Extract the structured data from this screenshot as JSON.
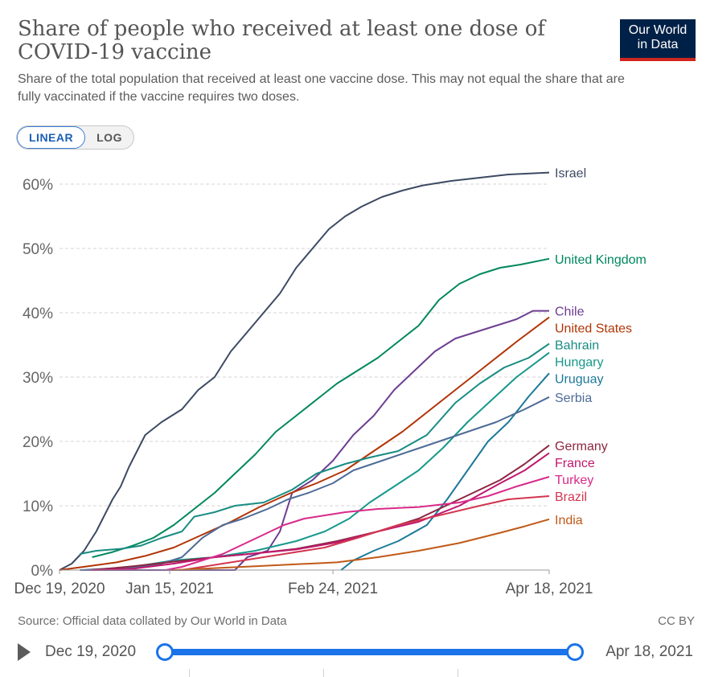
{
  "header": {
    "title": "Share of people who received at least one dose of COVID-19 vaccine",
    "subtitle": "Share of the total population that received at least one vaccine dose. This may not equal the share that are fully vaccinated if the vaccine requires two doses.",
    "logo_line1": "Our World",
    "logo_line2": "in Data"
  },
  "scale_toggle": {
    "linear_label": "LINEAR",
    "log_label": "LOG",
    "selected": "LINEAR"
  },
  "footer": {
    "source": "Source: Official data collated by Our World in Data",
    "license": "CC BY"
  },
  "timeline": {
    "start_label": "Dec 19, 2020",
    "end_label": "Apr 18, 2021"
  },
  "colors": {
    "accent": "#1a73e8",
    "logo_bg": "#002147",
    "logo_bar": "#ce261e"
  },
  "chart_data": {
    "type": "line",
    "title": "Share of people who received at least one dose of COVID-19 vaccine",
    "x_type": "date",
    "xlim": [
      "2020-12-19",
      "2021-04-18"
    ],
    "x_ticks": [
      {
        "date": "2020-12-19",
        "label": "Dec 19, 2020"
      },
      {
        "date": "2021-01-15",
        "label": "Jan 15, 2021"
      },
      {
        "date": "2021-02-24",
        "label": "Feb 24, 2021"
      },
      {
        "date": "2021-04-18",
        "label": "Apr 18, 2021"
      }
    ],
    "ylim": [
      0,
      62
    ],
    "y_ticks": [
      0,
      10,
      20,
      30,
      40,
      50,
      60
    ],
    "y_tick_labels": [
      "0%",
      "10%",
      "20%",
      "30%",
      "40%",
      "50%",
      "60%"
    ],
    "grid": true,
    "legend": "right, labels at line ends",
    "series": [
      {
        "name": "Israel",
        "color": "#3c4a63",
        "points": [
          [
            "2020-12-19",
            0
          ],
          [
            "2020-12-22",
            1
          ],
          [
            "2020-12-25",
            3
          ],
          [
            "2020-12-28",
            6
          ],
          [
            "2021-01-01",
            11
          ],
          [
            "2021-01-03",
            13
          ],
          [
            "2021-01-05",
            16
          ],
          [
            "2021-01-09",
            21
          ],
          [
            "2021-01-13",
            23
          ],
          [
            "2021-01-18",
            25
          ],
          [
            "2021-01-22",
            28
          ],
          [
            "2021-01-26",
            30
          ],
          [
            "2021-01-30",
            34
          ],
          [
            "2021-02-03",
            37
          ],
          [
            "2021-02-07",
            40
          ],
          [
            "2021-02-11",
            43
          ],
          [
            "2021-02-15",
            47
          ],
          [
            "2021-02-19",
            50
          ],
          [
            "2021-02-23",
            53
          ],
          [
            "2021-02-27",
            55
          ],
          [
            "2021-03-03",
            56.5
          ],
          [
            "2021-03-08",
            58
          ],
          [
            "2021-03-13",
            59
          ],
          [
            "2021-03-18",
            59.8
          ],
          [
            "2021-03-25",
            60.5
          ],
          [
            "2021-04-01",
            61
          ],
          [
            "2021-04-08",
            61.5
          ],
          [
            "2021-04-18",
            61.8
          ]
        ]
      },
      {
        "name": "United Kingdom",
        "color": "#00875e",
        "points": [
          [
            "2020-12-27",
            2
          ],
          [
            "2021-01-01",
            2.8
          ],
          [
            "2021-01-06",
            3.8
          ],
          [
            "2021-01-11",
            5
          ],
          [
            "2021-01-16",
            7
          ],
          [
            "2021-01-21",
            9.5
          ],
          [
            "2021-01-26",
            12
          ],
          [
            "2021-01-31",
            15
          ],
          [
            "2021-02-05",
            18
          ],
          [
            "2021-02-10",
            21.5
          ],
          [
            "2021-02-15",
            24
          ],
          [
            "2021-02-20",
            26.5
          ],
          [
            "2021-02-25",
            29
          ],
          [
            "2021-03-02",
            31
          ],
          [
            "2021-03-07",
            33
          ],
          [
            "2021-03-12",
            35.5
          ],
          [
            "2021-03-17",
            38
          ],
          [
            "2021-03-22",
            42
          ],
          [
            "2021-03-27",
            44.5
          ],
          [
            "2021-04-01",
            46
          ],
          [
            "2021-04-06",
            47
          ],
          [
            "2021-04-11",
            47.5
          ],
          [
            "2021-04-18",
            48.4
          ]
        ]
      },
      {
        "name": "Chile",
        "color": "#6d3e91",
        "points": [
          [
            "2020-12-24",
            0
          ],
          [
            "2021-01-31",
            0
          ],
          [
            "2021-02-03",
            2
          ],
          [
            "2021-02-08",
            3
          ],
          [
            "2021-02-11",
            6
          ],
          [
            "2021-02-14",
            12
          ],
          [
            "2021-02-19",
            14
          ],
          [
            "2021-02-24",
            17
          ],
          [
            "2021-03-01",
            21
          ],
          [
            "2021-03-06",
            24
          ],
          [
            "2021-03-11",
            28
          ],
          [
            "2021-03-16",
            31
          ],
          [
            "2021-03-21",
            34
          ],
          [
            "2021-03-26",
            36
          ],
          [
            "2021-03-31",
            37
          ],
          [
            "2021-04-05",
            38
          ],
          [
            "2021-04-10",
            39
          ],
          [
            "2021-04-14",
            40.3
          ],
          [
            "2021-04-18",
            40.3
          ]
        ]
      },
      {
        "name": "United States",
        "color": "#b13507",
        "points": [
          [
            "2020-12-19",
            0
          ],
          [
            "2020-12-26",
            0.6
          ],
          [
            "2021-01-02",
            1.2
          ],
          [
            "2021-01-09",
            2.2
          ],
          [
            "2021-01-16",
            3.5
          ],
          [
            "2021-01-23",
            5.5
          ],
          [
            "2021-01-30",
            7.5
          ],
          [
            "2021-02-06",
            9.8
          ],
          [
            "2021-02-13",
            11.8
          ],
          [
            "2021-02-20",
            13.5
          ],
          [
            "2021-02-27",
            15.5
          ],
          [
            "2021-03-06",
            18.5
          ],
          [
            "2021-03-13",
            21.5
          ],
          [
            "2021-03-20",
            25
          ],
          [
            "2021-03-27",
            28.5
          ],
          [
            "2021-04-03",
            32
          ],
          [
            "2021-04-10",
            35.5
          ],
          [
            "2021-04-18",
            39.3
          ]
        ]
      },
      {
        "name": "Bahrain",
        "color": "#188c82",
        "points": [
          [
            "2020-12-24",
            2.5
          ],
          [
            "2020-12-28",
            3
          ],
          [
            "2021-01-03",
            3.3
          ],
          [
            "2021-01-08",
            3.8
          ],
          [
            "2021-01-13",
            5
          ],
          [
            "2021-01-18",
            6
          ],
          [
            "2021-01-21",
            8.3
          ],
          [
            "2021-01-26",
            9
          ],
          [
            "2021-01-31",
            10
          ],
          [
            "2021-02-07",
            10.5
          ],
          [
            "2021-02-14",
            12.5
          ],
          [
            "2021-02-20",
            15
          ],
          [
            "2021-02-27",
            16.5
          ],
          [
            "2021-03-05",
            17.5
          ],
          [
            "2021-03-12",
            18.5
          ],
          [
            "2021-03-19",
            21
          ],
          [
            "2021-03-26",
            26
          ],
          [
            "2021-04-01",
            29
          ],
          [
            "2021-04-07",
            31.5
          ],
          [
            "2021-04-13",
            33
          ],
          [
            "2021-04-18",
            35.2
          ]
        ]
      },
      {
        "name": "Hungary",
        "color": "#17988c",
        "points": [
          [
            "2020-12-27",
            0
          ],
          [
            "2021-01-06",
            0.5
          ],
          [
            "2021-01-16",
            1.5
          ],
          [
            "2021-01-26",
            2
          ],
          [
            "2021-02-05",
            3
          ],
          [
            "2021-02-15",
            4.5
          ],
          [
            "2021-02-22",
            6
          ],
          [
            "2021-02-28",
            8
          ],
          [
            "2021-03-05",
            10.5
          ],
          [
            "2021-03-11",
            13
          ],
          [
            "2021-03-17",
            15.5
          ],
          [
            "2021-03-23",
            19
          ],
          [
            "2021-03-29",
            23
          ],
          [
            "2021-04-04",
            26.5
          ],
          [
            "2021-04-10",
            30
          ],
          [
            "2021-04-18",
            33.8
          ]
        ]
      },
      {
        "name": "Uruguay",
        "color": "#1d7999",
        "points": [
          [
            "2021-02-26",
            0
          ],
          [
            "2021-03-01",
            1.5
          ],
          [
            "2021-03-06",
            3
          ],
          [
            "2021-03-12",
            4.5
          ],
          [
            "2021-03-19",
            7
          ],
          [
            "2021-03-24",
            11
          ],
          [
            "2021-03-29",
            15.5
          ],
          [
            "2021-04-03",
            20
          ],
          [
            "2021-04-08",
            23
          ],
          [
            "2021-04-13",
            27
          ],
          [
            "2021-04-18",
            30.6
          ]
        ]
      },
      {
        "name": "Serbia",
        "color": "#4e6b96",
        "points": [
          [
            "2020-12-24",
            0
          ],
          [
            "2021-01-08",
            0.5
          ],
          [
            "2021-01-13",
            1
          ],
          [
            "2021-01-18",
            2
          ],
          [
            "2021-01-23",
            5
          ],
          [
            "2021-01-28",
            7
          ],
          [
            "2021-02-02",
            8
          ],
          [
            "2021-02-08",
            9.5
          ],
          [
            "2021-02-13",
            11
          ],
          [
            "2021-02-18",
            12
          ],
          [
            "2021-02-24",
            13.5
          ],
          [
            "2021-03-01",
            15.5
          ],
          [
            "2021-03-08",
            17
          ],
          [
            "2021-03-15",
            18.5
          ],
          [
            "2021-03-22",
            20
          ],
          [
            "2021-03-29",
            21.5
          ],
          [
            "2021-04-05",
            23
          ],
          [
            "2021-04-12",
            25
          ],
          [
            "2021-04-18",
            26.9
          ]
        ]
      },
      {
        "name": "Germany",
        "color": "#8c2742",
        "points": [
          [
            "2020-12-27",
            0
          ],
          [
            "2021-01-06",
            0.6
          ],
          [
            "2021-01-16",
            1.3
          ],
          [
            "2021-01-26",
            2
          ],
          [
            "2021-02-05",
            2.6
          ],
          [
            "2021-02-15",
            3.3
          ],
          [
            "2021-02-25",
            4.5
          ],
          [
            "2021-03-07",
            6
          ],
          [
            "2021-03-17",
            8
          ],
          [
            "2021-03-27",
            11
          ],
          [
            "2021-04-06",
            14
          ],
          [
            "2021-04-12",
            16.5
          ],
          [
            "2021-04-18",
            19.4
          ]
        ]
      },
      {
        "name": "France",
        "color": "#c0186e",
        "points": [
          [
            "2020-12-27",
            0
          ],
          [
            "2021-01-06",
            0.2
          ],
          [
            "2021-01-16",
            1
          ],
          [
            "2021-01-26",
            2
          ],
          [
            "2021-02-05",
            2.6
          ],
          [
            "2021-02-15",
            3.2
          ],
          [
            "2021-02-25",
            4.3
          ],
          [
            "2021-03-07",
            6
          ],
          [
            "2021-03-17",
            7.5
          ],
          [
            "2021-03-27",
            10
          ],
          [
            "2021-04-06",
            13.5
          ],
          [
            "2021-04-12",
            15.5
          ],
          [
            "2021-04-18",
            18.2
          ]
        ]
      },
      {
        "name": "Turkey",
        "color": "#d82a8a",
        "points": [
          [
            "2021-01-14",
            0
          ],
          [
            "2021-01-18",
            0.5
          ],
          [
            "2021-01-23",
            1.5
          ],
          [
            "2021-01-28",
            2.5
          ],
          [
            "2021-02-02",
            4
          ],
          [
            "2021-02-07",
            5.5
          ],
          [
            "2021-02-12",
            7
          ],
          [
            "2021-02-17",
            8
          ],
          [
            "2021-02-22",
            8.5
          ],
          [
            "2021-02-27",
            9
          ],
          [
            "2021-03-07",
            9.5
          ],
          [
            "2021-03-17",
            9.8
          ],
          [
            "2021-03-27",
            10.5
          ],
          [
            "2021-04-03",
            11.5
          ],
          [
            "2021-04-10",
            13
          ],
          [
            "2021-04-18",
            14.5
          ]
        ]
      },
      {
        "name": "Brazil",
        "color": "#d23550",
        "points": [
          [
            "2021-01-18",
            0
          ],
          [
            "2021-01-23",
            0.5
          ],
          [
            "2021-02-02",
            1.5
          ],
          [
            "2021-02-12",
            2.5
          ],
          [
            "2021-02-22",
            3.5
          ],
          [
            "2021-03-02",
            5
          ],
          [
            "2021-03-12",
            7
          ],
          [
            "2021-03-22",
            8.5
          ],
          [
            "2021-04-01",
            10
          ],
          [
            "2021-04-08",
            11
          ],
          [
            "2021-04-18",
            11.5
          ]
        ]
      },
      {
        "name": "India",
        "color": "#c05917",
        "points": [
          [
            "2021-01-16",
            0
          ],
          [
            "2021-01-26",
            0.3
          ],
          [
            "2021-02-05",
            0.6
          ],
          [
            "2021-02-15",
            0.9
          ],
          [
            "2021-02-25",
            1.2
          ],
          [
            "2021-03-07",
            2
          ],
          [
            "2021-03-17",
            3
          ],
          [
            "2021-03-27",
            4.2
          ],
          [
            "2021-04-06",
            5.8
          ],
          [
            "2021-04-12",
            6.8
          ],
          [
            "2021-04-18",
            7.9
          ]
        ]
      }
    ]
  }
}
